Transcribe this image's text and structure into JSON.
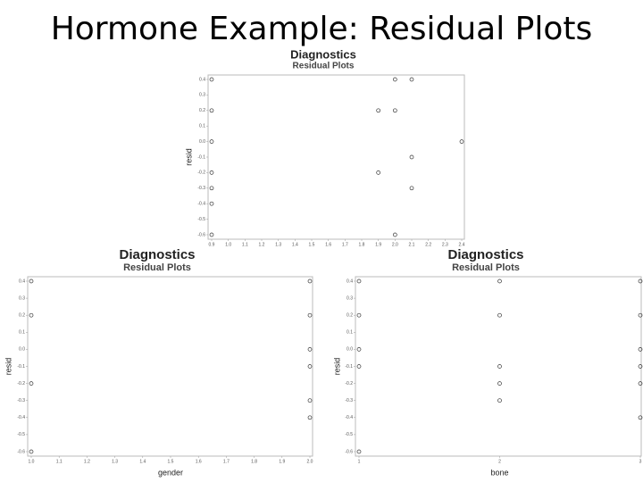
{
  "title": "Hormone Example: Residual Plots",
  "chart_data": [
    {
      "type": "scatter",
      "title": "Diagnostics",
      "subtitle": "Residual Plots",
      "y_label": "resid",
      "color": "#333333",
      "x": [
        0.9,
        0.9,
        0.9,
        0.9,
        0.9,
        0.9,
        0.9,
        1.9,
        2.0,
        2.0,
        2.1,
        2.1,
        1.9,
        2.1,
        2.0,
        2.4
      ],
      "values": [
        0.4,
        0.2,
        0.0,
        -0.2,
        -0.3,
        -0.4,
        -0.6,
        0.2,
        0.4,
        0.2,
        0.4,
        -0.1,
        -0.2,
        -0.3,
        -0.6,
        0.0
      ],
      "xlim": [
        0.9,
        2.4
      ],
      "ylim": [
        -0.6,
        0.4
      ],
      "xticks": [
        0.9,
        {
          "value": 1,
          "label": "1.0"
        },
        1.1,
        1.2,
        1.3,
        1.4,
        1.5,
        1.6,
        1.7,
        1.8,
        1.9,
        {
          "value": 2,
          "label": "2.0"
        },
        2.1,
        2.2,
        2.3,
        2.4
      ],
      "yticks": [
        0.4,
        0.3,
        0.2,
        0.1,
        {
          "value": 0,
          "label": "0.0"
        },
        -0.1,
        -0.2,
        -0.3,
        -0.4,
        -0.5,
        -0.6
      ]
    },
    {
      "type": "scatter",
      "title": "Diagnostics",
      "subtitle": "Residual Plots",
      "y_label": "resid",
      "x_label": "gender",
      "color": "#333333",
      "x": [
        1,
        1,
        1,
        1,
        2,
        2,
        2,
        2,
        2,
        2
      ],
      "values": [
        0.4,
        0.2,
        -0.2,
        -0.6,
        0.4,
        0.2,
        0.0,
        -0.1,
        -0.3,
        -0.4
      ],
      "xlim": [
        1,
        2
      ],
      "ylim": [
        -0.6,
        0.4
      ],
      "xticks": [
        {
          "value": 1,
          "label": "1.0"
        },
        1.1,
        1.2,
        1.3,
        1.4,
        1.5,
        1.6,
        1.7,
        1.8,
        1.9,
        {
          "value": 2,
          "label": "2.0"
        }
      ],
      "yticks": [
        0.4,
        0.3,
        0.2,
        0.1,
        {
          "value": 0,
          "label": "0.0"
        },
        -0.1,
        -0.2,
        -0.3,
        -0.4,
        -0.5,
        -0.6
      ]
    },
    {
      "type": "scatter",
      "title": "Diagnostics",
      "subtitle": "Residual Plots",
      "y_label": "resid",
      "x_label": "bone",
      "color": "#333333",
      "x": [
        1,
        1,
        1,
        1,
        1,
        2,
        2,
        2,
        2,
        2,
        3,
        3,
        3,
        3,
        3,
        3
      ],
      "values": [
        0.4,
        0.2,
        0.0,
        -0.1,
        -0.6,
        0.4,
        0.2,
        -0.1,
        -0.2,
        -0.3,
        0.4,
        0.2,
        0.0,
        -0.1,
        -0.2,
        -0.4
      ],
      "xlim": [
        1,
        3
      ],
      "ylim": [
        -0.6,
        0.4
      ],
      "xticks": [
        1,
        2,
        3
      ],
      "yticks": [
        0.4,
        0.3,
        0.2,
        0.1,
        {
          "value": 0,
          "label": "0.0"
        },
        -0.1,
        -0.2,
        -0.3,
        -0.4,
        -0.5,
        -0.6
      ]
    }
  ]
}
